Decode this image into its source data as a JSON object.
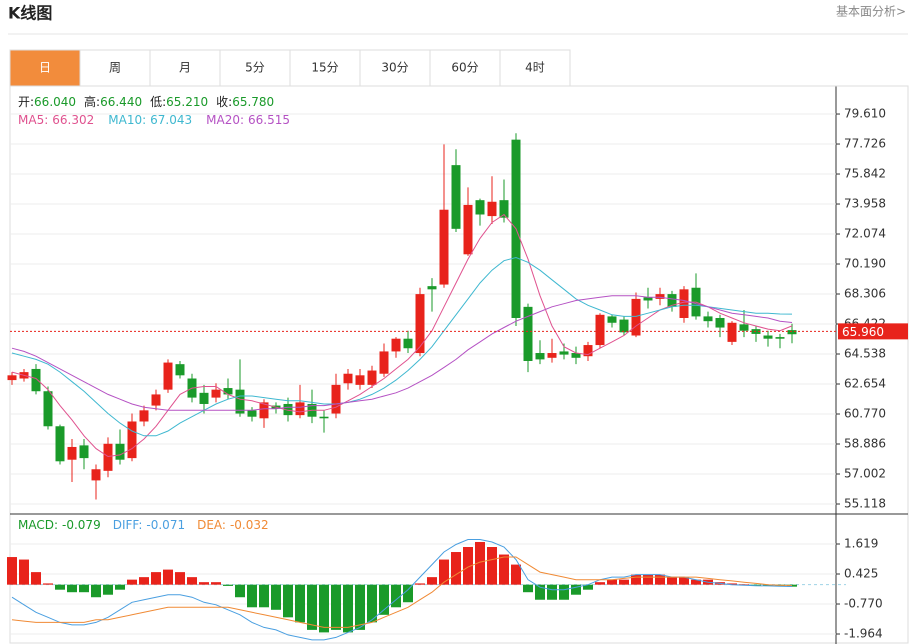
{
  "header": {
    "title": "K线图",
    "link": "基本面分析>"
  },
  "tabs": [
    "日",
    "周",
    "月",
    "5分",
    "15分",
    "30分",
    "60分",
    "4时"
  ],
  "active_tab": 0,
  "chart_data": [
    {
      "type": "candlestick",
      "info": [
        {
          "label": "开:",
          "value": "66.040"
        },
        {
          "label": "高:",
          "value": "66.440"
        },
        {
          "label": "低:",
          "value": "65.210"
        },
        {
          "label": "收:",
          "value": "65.780"
        }
      ],
      "up_color": "#e8231b",
      "down_color": "#1a9a2a",
      "open": [
        62.9,
        63.0,
        63.6,
        62.2,
        60.0,
        57.9,
        58.8,
        56.6,
        57.2,
        58.9,
        58.0,
        60.3,
        61.3,
        62.3,
        63.9,
        63.0,
        62.1,
        61.8,
        62.4,
        62.3,
        61.0,
        60.5,
        61.3,
        61.4,
        60.7,
        61.4,
        60.6,
        60.8,
        62.7,
        62.6,
        62.6,
        63.3,
        64.7,
        65.5,
        64.6,
        68.8,
        68.9,
        76.4,
        70.8,
        74.2,
        73.2,
        74.2,
        78.0,
        67.5,
        64.6,
        64.3,
        64.7,
        64.6,
        64.4,
        65.1,
        66.9,
        66.7,
        65.7,
        68.1,
        68.0,
        68.3,
        66.8,
        68.7,
        66.9,
        66.8,
        65.3,
        66.4,
        66.1,
        65.7,
        65.6,
        66.04
      ],
      "high": [
        63.4,
        63.6,
        63.9,
        62.5,
        60.1,
        59.2,
        59.2,
        57.6,
        59.3,
        59.8,
        60.8,
        61.3,
        62.3,
        64.2,
        64.1,
        63.3,
        62.6,
        62.7,
        63.0,
        64.2,
        61.2,
        61.7,
        61.5,
        61.8,
        62.6,
        62.3,
        61.0,
        63.3,
        63.6,
        63.6,
        63.8,
        65.2,
        65.6,
        66.0,
        68.7,
        69.3,
        77.7,
        77.4,
        75.0,
        74.3,
        75.7,
        75.5,
        78.4,
        67.7,
        65.4,
        65.5,
        65.2,
        65.0,
        65.3,
        67.1,
        67.0,
        66.9,
        68.4,
        68.7,
        68.7,
        68.5,
        68.8,
        69.6,
        67.2,
        67.0,
        66.6,
        67.3,
        66.3,
        66.0,
        65.8,
        66.44
      ],
      "low": [
        62.6,
        62.8,
        62.0,
        59.8,
        57.6,
        56.5,
        57.3,
        55.4,
        56.8,
        57.6,
        57.8,
        60.0,
        61.0,
        62.1,
        63.0,
        61.5,
        60.8,
        61.5,
        61.7,
        60.6,
        60.3,
        59.9,
        60.8,
        60.3,
        60.5,
        60.2,
        59.6,
        60.5,
        62.3,
        62.3,
        62.4,
        63.1,
        64.3,
        64.6,
        64.4,
        67.2,
        68.7,
        72.2,
        70.7,
        72.6,
        72.7,
        72.8,
        66.3,
        63.4,
        63.9,
        64.0,
        64.2,
        63.9,
        64.1,
        64.9,
        66.2,
        65.7,
        65.6,
        67.4,
        67.6,
        67.2,
        66.5,
        66.7,
        66.2,
        65.6,
        65.1,
        65.6,
        65.3,
        65.0,
        64.9,
        65.21
      ],
      "close": [
        63.2,
        63.4,
        62.2,
        60.0,
        57.8,
        58.7,
        58.0,
        57.3,
        58.9,
        57.9,
        60.3,
        61.0,
        62.0,
        64.0,
        63.2,
        61.8,
        61.4,
        62.3,
        62.0,
        60.8,
        60.6,
        61.5,
        61.1,
        60.7,
        61.5,
        60.6,
        60.5,
        62.6,
        63.3,
        63.2,
        63.5,
        64.7,
        65.5,
        64.9,
        68.3,
        68.6,
        73.6,
        72.4,
        73.9,
        73.3,
        74.1,
        73.1,
        66.8,
        64.1,
        64.2,
        64.6,
        64.5,
        64.3,
        65.1,
        67.0,
        66.5,
        65.9,
        68.0,
        67.9,
        68.3,
        67.5,
        68.6,
        66.9,
        66.6,
        66.2,
        66.5,
        66.0,
        65.8,
        65.5,
        65.5,
        65.78
      ],
      "series": [
        {
          "name": "MA5:",
          "latest_label": "66.302",
          "color": "#e0528f",
          "values": [
            63.4,
            63.2,
            63.0,
            62.3,
            61.3,
            60.4,
            59.4,
            58.6,
            58.1,
            58.2,
            58.6,
            59.2,
            60.0,
            61.0,
            62.0,
            62.4,
            62.5,
            62.5,
            62.0,
            61.7,
            61.6,
            61.4,
            61.2,
            61.0,
            60.9,
            61.0,
            61.0,
            61.2,
            61.6,
            62.0,
            62.5,
            63.0,
            63.6,
            64.2,
            65.0,
            66.0,
            67.5,
            69.0,
            70.5,
            71.8,
            72.8,
            73.3,
            72.4,
            70.5,
            68.2,
            66.3,
            65.0,
            64.6,
            64.5,
            64.9,
            65.3,
            65.7,
            66.3,
            66.8,
            67.3,
            67.6,
            67.8,
            67.8,
            67.5,
            67.1,
            66.8,
            66.5,
            66.3,
            66.1,
            66.0,
            66.302
          ]
        },
        {
          "name": "MA10:",
          "latest_label": "67.043",
          "color": "#3fb8d0",
          "values": [
            64.6,
            64.4,
            64.2,
            63.9,
            63.4,
            62.8,
            62.2,
            61.5,
            60.8,
            60.2,
            59.7,
            59.4,
            59.4,
            59.7,
            60.2,
            60.6,
            61.0,
            61.4,
            61.7,
            61.9,
            61.9,
            61.8,
            61.7,
            61.6,
            61.6,
            61.5,
            61.4,
            61.4,
            61.5,
            61.7,
            62.0,
            62.4,
            62.9,
            63.5,
            64.2,
            65.0,
            66.0,
            67.0,
            68.0,
            69.0,
            69.8,
            70.4,
            70.6,
            70.3,
            69.8,
            69.2,
            68.6,
            68.0,
            67.6,
            67.3,
            67.0,
            66.9,
            66.9,
            67.1,
            67.3,
            67.5,
            67.6,
            67.6,
            67.5,
            67.4,
            67.3,
            67.2,
            67.1,
            67.1,
            67.05,
            67.043
          ]
        },
        {
          "name": "MA20:",
          "latest_label": "66.515",
          "color": "#b552c4",
          "values": [
            64.9,
            64.7,
            64.4,
            64.0,
            63.6,
            63.2,
            62.8,
            62.4,
            62.0,
            61.7,
            61.4,
            61.2,
            61.1,
            61.0,
            61.0,
            61.0,
            61.0,
            61.0,
            61.0,
            61.0,
            61.0,
            61.1,
            61.1,
            61.2,
            61.2,
            61.3,
            61.3,
            61.4,
            61.5,
            61.6,
            61.7,
            61.9,
            62.1,
            62.4,
            62.8,
            63.2,
            63.7,
            64.2,
            64.8,
            65.3,
            65.8,
            66.2,
            66.6,
            66.9,
            67.2,
            67.5,
            67.7,
            67.9,
            68.0,
            68.1,
            68.2,
            68.2,
            68.2,
            68.1,
            68.1,
            68.0,
            67.9,
            67.7,
            67.5,
            67.3,
            67.1,
            67.0,
            66.9,
            66.8,
            66.6,
            66.515
          ]
        }
      ],
      "ylim": [
        54.49,
        81.37
      ],
      "yticks": [
        {
          "value": 79.61,
          "label": "79.610"
        },
        {
          "value": 77.726,
          "label": "77.726"
        },
        {
          "value": 75.842,
          "label": "75.842"
        },
        {
          "value": 73.958,
          "label": "73.958"
        },
        {
          "value": 72.074,
          "label": "72.074"
        },
        {
          "value": 70.19,
          "label": "70.190"
        },
        {
          "value": 68.306,
          "label": "68.306"
        },
        {
          "value": 66.422,
          "label": "66.422"
        },
        {
          "value": 64.538,
          "label": "64.538"
        },
        {
          "value": 62.654,
          "label": "62.654"
        },
        {
          "value": 60.77,
          "label": "60.770"
        },
        {
          "value": 58.886,
          "label": "58.886"
        },
        {
          "value": 57.002,
          "label": "57.002"
        },
        {
          "value": 55.118,
          "label": "55.118"
        }
      ],
      "current_price": {
        "value": 65.96,
        "label": "65.960"
      },
      "current_color": "#e8231b"
    },
    {
      "type": "macd",
      "histogram": {
        "name": "MACD:",
        "latest_label": "-0.079",
        "color": "#1a9a2a",
        "up_color": "#e8231b",
        "down_color": "#1a9a2a",
        "values": [
          1.1,
          1.0,
          0.5,
          0.05,
          -0.2,
          -0.3,
          -0.3,
          -0.5,
          -0.4,
          -0.2,
          0.2,
          0.3,
          0.5,
          0.6,
          0.5,
          0.3,
          0.1,
          0.1,
          -0.05,
          -0.5,
          -0.9,
          -0.9,
          -1.0,
          -1.3,
          -1.5,
          -1.8,
          -1.9,
          -1.8,
          -1.9,
          -1.8,
          -1.5,
          -1.2,
          -0.9,
          -0.7,
          0.05,
          0.3,
          1.0,
          1.3,
          1.5,
          1.7,
          1.5,
          1.2,
          0.8,
          -0.3,
          -0.6,
          -0.6,
          -0.6,
          -0.4,
          -0.2,
          0.1,
          0.2,
          0.2,
          0.4,
          0.4,
          0.4,
          0.3,
          0.3,
          0.2,
          0.2,
          0.1,
          0.05,
          0.02,
          -0.03,
          -0.04,
          -0.05,
          -0.079
        ]
      },
      "series": [
        {
          "name": "DIFF:",
          "latest_label": "-0.071",
          "color": "#4a9fe0",
          "values": [
            -0.5,
            -0.8,
            -1.1,
            -1.3,
            -1.5,
            -1.6,
            -1.6,
            -1.5,
            -1.3,
            -1.0,
            -0.7,
            -0.6,
            -0.5,
            -0.4,
            -0.4,
            -0.5,
            -0.7,
            -0.8,
            -1.0,
            -1.2,
            -1.5,
            -1.7,
            -1.8,
            -2.0,
            -2.1,
            -2.2,
            -2.2,
            -2.1,
            -1.9,
            -1.7,
            -1.4,
            -1.0,
            -0.6,
            -0.2,
            0.3,
            0.8,
            1.3,
            1.6,
            1.8,
            1.8,
            1.7,
            1.5,
            1.0,
            0.2,
            -0.1,
            -0.2,
            -0.2,
            -0.1,
            0.0,
            0.2,
            0.3,
            0.3,
            0.4,
            0.4,
            0.4,
            0.3,
            0.3,
            0.2,
            0.1,
            0.05,
            0.0,
            -0.02,
            -0.04,
            -0.05,
            -0.06,
            -0.071
          ]
        },
        {
          "name": "DEA:",
          "latest_label": "-0.032",
          "color": "#f08a35",
          "values": [
            -1.4,
            -1.45,
            -1.5,
            -1.5,
            -1.5,
            -1.5,
            -1.5,
            -1.4,
            -1.4,
            -1.3,
            -1.2,
            -1.1,
            -1.0,
            -0.9,
            -0.9,
            -0.9,
            -0.9,
            -0.9,
            -0.9,
            -1.0,
            -1.1,
            -1.2,
            -1.3,
            -1.4,
            -1.5,
            -1.6,
            -1.7,
            -1.7,
            -1.7,
            -1.6,
            -1.5,
            -1.3,
            -1.1,
            -0.9,
            -0.6,
            -0.3,
            0.1,
            0.4,
            0.7,
            0.9,
            1.0,
            1.1,
            1.1,
            0.8,
            0.5,
            0.4,
            0.3,
            0.2,
            0.2,
            0.2,
            0.2,
            0.25,
            0.3,
            0.3,
            0.3,
            0.3,
            0.3,
            0.3,
            0.25,
            0.2,
            0.15,
            0.1,
            0.05,
            0.0,
            -0.02,
            -0.032
          ]
        }
      ],
      "ylim": [
        -2.362,
        2.814
      ],
      "yticks": [
        {
          "value": 1.619,
          "label": "1.619"
        },
        {
          "value": 0.425,
          "label": "0.425"
        },
        {
          "value": -0.77,
          "label": "-0.770"
        },
        {
          "value": -1.964,
          "label": "-1.964"
        }
      ]
    }
  ]
}
